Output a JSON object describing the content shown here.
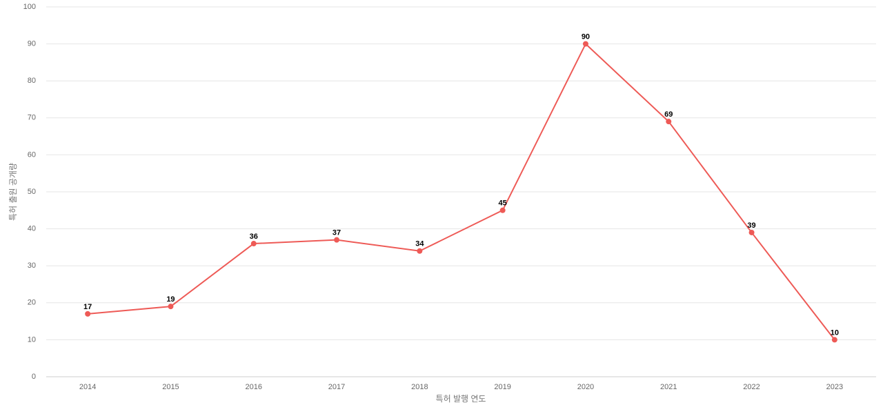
{
  "chart_data": {
    "type": "line",
    "x_label": "특허 발행 연도",
    "y_label": "특허 출원 공개량",
    "categories": [
      "2014",
      "2015",
      "2016",
      "2017",
      "2018",
      "2019",
      "2020",
      "2021",
      "2022",
      "2023"
    ],
    "series": [
      {
        "color": "#ee5a56",
        "values": [
          17,
          19,
          36,
          37,
          34,
          45,
          90,
          69,
          39,
          10
        ]
      }
    ],
    "ylim": [
      0,
      100
    ],
    "yticks": [
      0,
      10,
      20,
      30,
      40,
      50,
      60,
      70,
      80,
      90,
      100
    ],
    "grid": true
  }
}
